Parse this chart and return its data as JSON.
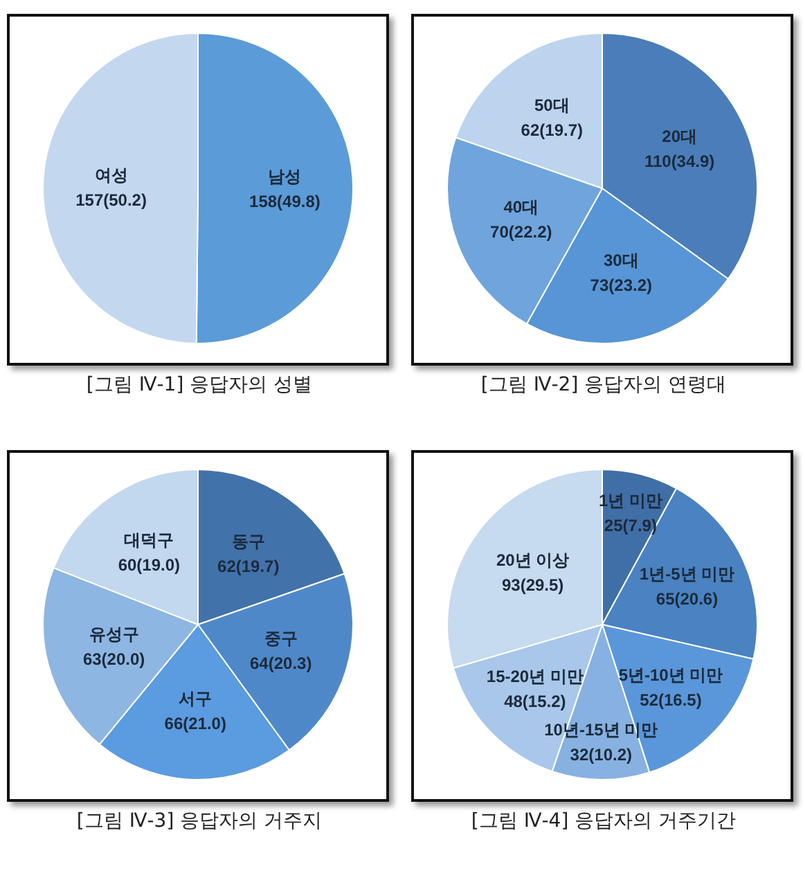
{
  "chart_data": [
    {
      "type": "pie",
      "title": "[그림 Ⅳ-1] 응답자의 성별",
      "categories": [
        "남성",
        "여성"
      ],
      "values": [
        158,
        157
      ],
      "value_labels": [
        "158(49.8)",
        "157(50.2)"
      ],
      "colors": [
        "#5b9bd8",
        "#c3d8ef"
      ]
    },
    {
      "type": "pie",
      "title": "[그림 Ⅳ-2] 응답자의 연령대",
      "categories": [
        "20대",
        "30대",
        "40대",
        "50대"
      ],
      "values": [
        110,
        73,
        70,
        62
      ],
      "value_labels": [
        "110(34.9)",
        "73(23.2)",
        "70(22.2)",
        "62(19.7)"
      ],
      "colors": [
        "#4a7dba",
        "#5795d6",
        "#6fa5dc",
        "#bdd4ee"
      ]
    },
    {
      "type": "pie",
      "title": "[그림 Ⅳ-3] 응답자의 거주지",
      "categories": [
        "동구",
        "중구",
        "서구",
        "유성구",
        "대덕구"
      ],
      "values": [
        62,
        64,
        66,
        63,
        60
      ],
      "value_labels": [
        "62(19.7)",
        "64(20.3)",
        "66(21.0)",
        "63(20.0)",
        "60(19.0)"
      ],
      "colors": [
        "#4272aa",
        "#4f88c8",
        "#5b9be0",
        "#8db6e3",
        "#c2d8ef"
      ]
    },
    {
      "type": "pie",
      "title": "[그림 Ⅳ-4] 응답자의 거주기간",
      "categories": [
        "1년 미만",
        "1년-5년 미만",
        "5년-10년 미만",
        "10년-15년 미만",
        "15-20년 미만",
        "20년 이상"
      ],
      "values": [
        25,
        65,
        52,
        32,
        48,
        93
      ],
      "value_labels": [
        "25(7.9)",
        "65(20.6)",
        "52(16.5)",
        "32(10.2)",
        "48(15.2)",
        "93(29.5)"
      ],
      "colors": [
        "#3f6fa6",
        "#4a82c2",
        "#5a97da",
        "#86b1e1",
        "#a8c7ea",
        "#c6daf0"
      ]
    }
  ]
}
